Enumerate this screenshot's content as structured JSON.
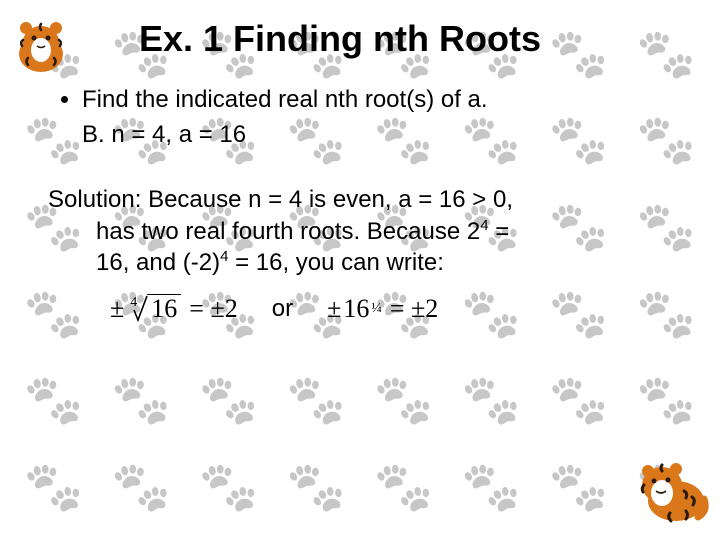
{
  "title": "Ex. 1 Finding nth Roots",
  "bullet": "Find the indicated real nth root(s) of a.",
  "subline": "B.  n = 4, a = 16",
  "solution": {
    "line1": "Solution:  Because n = 4 is even, a = 16 > 0,",
    "line2": "has two real fourth roots. Because 2",
    "line2_sup": "4",
    "line2_tail": " =",
    "line3_a": "16, and (-2)",
    "line3_sup": "4",
    "line3_b": " = 16, you can write:"
  },
  "eq": {
    "pm": "±",
    "rootIndex": "4",
    "radicand": "16",
    "eqResult": "= ±2",
    "or": "or",
    "base": "16",
    "fracExp": "¼",
    "eqResult2": "= ±2"
  },
  "style": {
    "bg": "#ffffff",
    "pawColor": "#e8e8e8",
    "textColor": "#000000",
    "titleFontSize": 36,
    "bodyFontSize": 24,
    "tigerOrange": "#d9771a",
    "tigerDark": "#2b1a0a",
    "tigerWhite": "#ffffff"
  }
}
